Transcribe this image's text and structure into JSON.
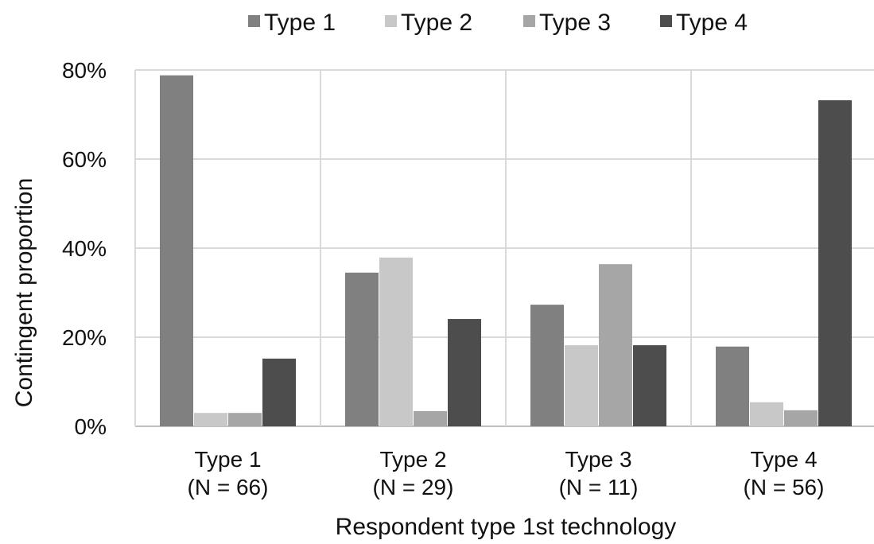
{
  "chart_data": {
    "type": "bar",
    "categories": [
      "Type 1",
      "Type 2",
      "Type 3",
      "Type 4"
    ],
    "category_sublabels": [
      "(N = 66)",
      "(N = 29)",
      "(N = 11)",
      "(N = 56)"
    ],
    "series": [
      {
        "name": "Type 1",
        "color": "#808080",
        "values": [
          78.8,
          34.5,
          27.3,
          17.9
        ]
      },
      {
        "name": "Type 2",
        "color": "#c8c8c8",
        "values": [
          3.0,
          37.9,
          18.2,
          5.4
        ]
      },
      {
        "name": "Type 3",
        "color": "#a6a6a6",
        "values": [
          3.0,
          3.4,
          36.4,
          3.6
        ]
      },
      {
        "name": "Type 4",
        "color": "#4d4d4d",
        "values": [
          15.2,
          24.1,
          18.2,
          73.2
        ]
      }
    ],
    "xlabel": "Respondent type 1st technology",
    "ylabel": "Contingent proportion",
    "ylim": [
      0,
      80
    ],
    "yticks": [
      "0%",
      "20%",
      "40%",
      "60%",
      "80%"
    ],
    "grid": true,
    "legend_position": "top"
  }
}
